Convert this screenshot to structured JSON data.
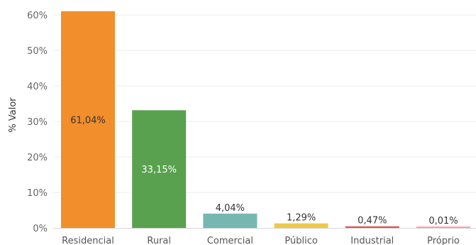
{
  "chart_data": {
    "type": "bar",
    "ylabel": "% Valor",
    "xlabel": "",
    "ylim": [
      0,
      64
    ],
    "yticks": [
      0,
      10,
      20,
      30,
      40,
      50,
      60
    ],
    "ytick_labels": [
      "0%",
      "10%",
      "20%",
      "30%",
      "40%",
      "50%",
      "60%"
    ],
    "categories": [
      "Residencial",
      "Rural",
      "Comercial",
      "Público",
      "Industrial",
      "Próprio"
    ],
    "values": [
      61.04,
      33.15,
      4.04,
      1.29,
      0.47,
      0.01
    ],
    "data_labels": [
      "61,04%",
      "33,15%",
      "4,04%",
      "1,29%",
      "0,47%",
      "0,01%"
    ],
    "colors": [
      "#f28e2b",
      "#59a14f",
      "#76b7b2",
      "#edc948",
      "#e15759",
      "#ff9da7"
    ],
    "label_colors": [
      "#333333",
      "#ffffff",
      "#333333",
      "#333333",
      "#333333",
      "#333333"
    ],
    "grid": true,
    "legend": "none"
  }
}
